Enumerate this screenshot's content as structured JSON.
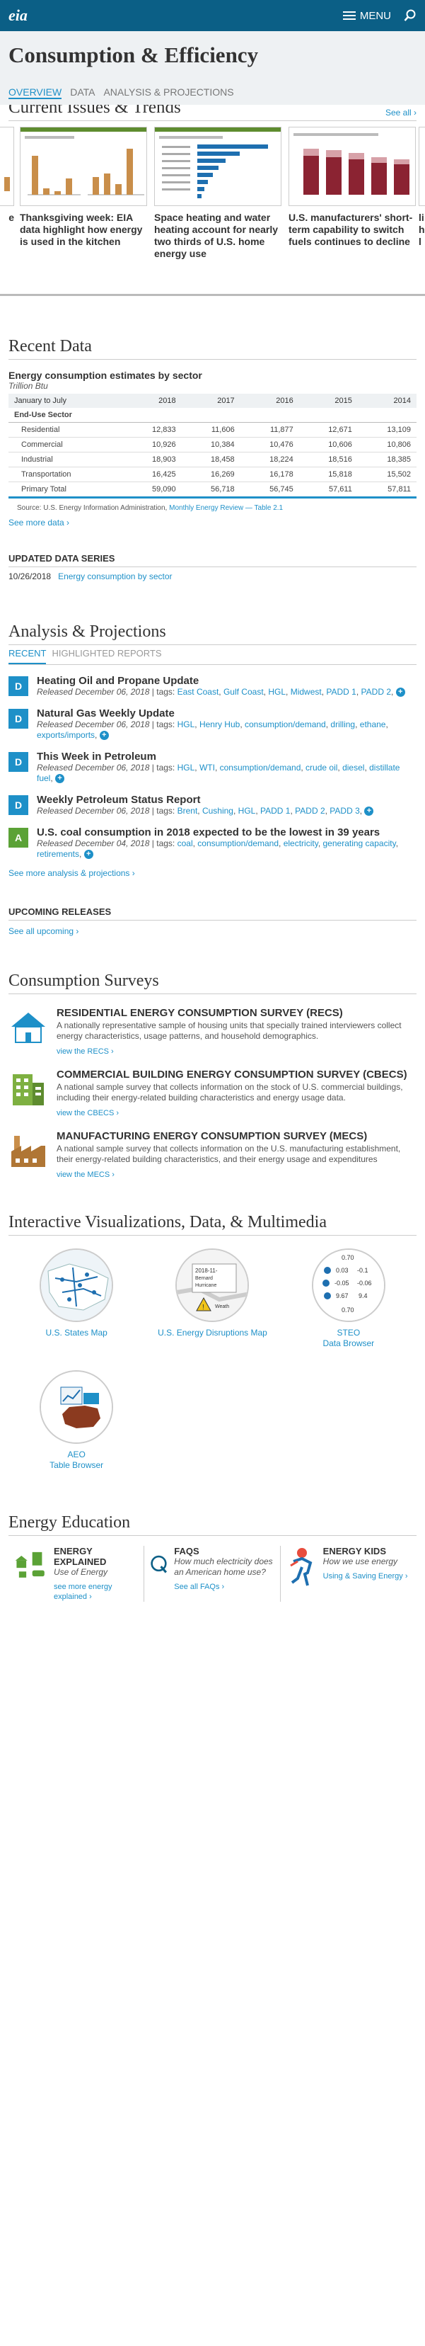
{
  "header": {
    "logo": "eia",
    "menu_label": "MENU"
  },
  "page_title": "Consumption & Efficiency",
  "subnav": [
    "OVERVIEW",
    "DATA",
    "ANALYSIS & PROJECTIONS"
  ],
  "trends": {
    "title": "Current Issues & Trends",
    "see_all": "See all ›",
    "cards": [
      {
        "title": "Thanksgiving week: EIA data highlight how energy is used in the kitchen"
      },
      {
        "title": "Space heating and water heating account for nearly two thirds of U.S. home energy use"
      },
      {
        "title": "U.S. manufacturers' short-term capability to switch fuels continues to decline"
      }
    ],
    "left_peek": "e",
    "right_peek": [
      "li",
      "h",
      "l"
    ]
  },
  "recent_data": {
    "title": "Recent Data",
    "table_title": "Energy consumption estimates by sector",
    "unit": "Trillion Btu",
    "period_label": "January to July",
    "years": [
      "2018",
      "2017",
      "2016",
      "2015",
      "2014"
    ],
    "section_label": "End-Use Sector",
    "rows": [
      {
        "label": "Residential",
        "values": [
          "12,833",
          "11,606",
          "11,877",
          "12,671",
          "13,109"
        ]
      },
      {
        "label": "Commercial",
        "values": [
          "10,926",
          "10,384",
          "10,476",
          "10,606",
          "10,806"
        ]
      },
      {
        "label": "Industrial",
        "values": [
          "18,903",
          "18,458",
          "18,224",
          "18,516",
          "18,385"
        ]
      },
      {
        "label": "Transportation",
        "values": [
          "16,425",
          "16,269",
          "16,178",
          "15,818",
          "15,502"
        ]
      },
      {
        "label": "Primary Total",
        "values": [
          "59,090",
          "56,718",
          "56,745",
          "57,611",
          "57,811"
        ]
      }
    ],
    "source_prefix": "Source: U.S. Energy Information Administration,",
    "source_link": "Monthly Energy Review — Table 2.1",
    "see_more": "See more data ›"
  },
  "updated": {
    "title": "UPDATED DATA SERIES",
    "date": "10/26/2018",
    "link": "Energy consumption by sector"
  },
  "analysis": {
    "title": "Analysis & Projections",
    "tabs": [
      "RECENT",
      "HIGHLIGHTED REPORTS"
    ],
    "items": [
      {
        "badge": "D",
        "color": "#1e90c8",
        "title": "Heating Oil and Propane Update",
        "released": "Released December 06, 2018",
        "tags": [
          "East Coast",
          "Gulf Coast",
          "HGL",
          "Midwest",
          "PADD 1",
          "PADD 2"
        ]
      },
      {
        "badge": "D",
        "color": "#1e90c8",
        "title": "Natural Gas Weekly Update",
        "released": "Released December 06, 2018",
        "tags": [
          "HGL",
          "Henry Hub",
          "consumption/demand",
          "drilling",
          "ethane",
          "exports/imports"
        ]
      },
      {
        "badge": "D",
        "color": "#1e90c8",
        "title": "This Week in Petroleum",
        "released": "Released December 06, 2018",
        "tags": [
          "HGL",
          "WTI",
          "consumption/demand",
          "crude oil",
          "diesel",
          "distillate fuel"
        ]
      },
      {
        "badge": "D",
        "color": "#1e90c8",
        "title": "Weekly Petroleum Status Report",
        "released": "Released December 06, 2018",
        "tags": [
          "Brent",
          "Cushing",
          "HGL",
          "PADD 1",
          "PADD 2",
          "PADD 3"
        ]
      },
      {
        "badge": "A",
        "color": "#5ba236",
        "title": "U.S. coal consumption in 2018 expected to be the lowest in 39 years",
        "released": "Released December 04, 2018",
        "tags": [
          "coal",
          "consumption/demand",
          "electricity",
          "generating capacity",
          "retirements"
        ]
      }
    ],
    "tags_label": "| tags:",
    "see_more": "See more analysis & projections ›"
  },
  "upcoming": {
    "title": "UPCOMING RELEASES",
    "link": "See all upcoming ›"
  },
  "surveys": {
    "title": "Consumption Surveys",
    "items": [
      {
        "title": "RESIDENTIAL ENERGY CONSUMPTION SURVEY (RECS)",
        "desc": "A nationally representative sample of housing units that specially trained interviewers collect energy characteristics, usage patterns, and household demographics.",
        "link": "view the RECS ›"
      },
      {
        "title": "COMMERCIAL BUILDING ENERGY CONSUMPTION SURVEY (CBECS)",
        "desc": "A national sample survey that collects information on the stock of U.S. commercial buildings, including their energy-related building characteristics and energy usage data.",
        "link": "view the CBECS ›"
      },
      {
        "title": "MANUFACTURING ENERGY CONSUMPTION SURVEY (MECS)",
        "desc": "A national sample survey that collects information on the U.S. manufacturing establishment, their energy-related building characteristics, and their energy usage and expenditures",
        "link": "view the MECS ›"
      }
    ]
  },
  "viz": {
    "title": "Interactive Visualizations, Data, & Multimedia",
    "items": [
      {
        "label": "U.S. States Map"
      },
      {
        "label": "U.S. Energy Disruptions Map"
      },
      {
        "label": "STEO\nData Browser",
        "values": [
          "0.70",
          "0.03",
          "-0.1",
          "-0.05",
          "-0.06",
          "9.67",
          "9.4",
          "0.70"
        ]
      },
      {
        "label": "AEO\nTable Browser"
      }
    ],
    "disruption_texts": [
      "2018-11-",
      "Bernard",
      "Hurricane",
      "Weath"
    ]
  },
  "education": {
    "title": "Energy Education",
    "items": [
      {
        "title": "ENERGY EXPLAINED",
        "sub": "Use of Energy",
        "link": "see more energy explained ›"
      },
      {
        "title": "FAQS",
        "sub": "How much electricity does an American home use?",
        "link": "See all FAQs ›"
      },
      {
        "title": "ENERGY KIDS",
        "sub": "How we use energy",
        "link": "Using & Saving Energy ›"
      }
    ]
  },
  "colors": {
    "brand": "#0b5f86",
    "link": "#1e90c8",
    "analysis_badge": "#5ba236"
  }
}
